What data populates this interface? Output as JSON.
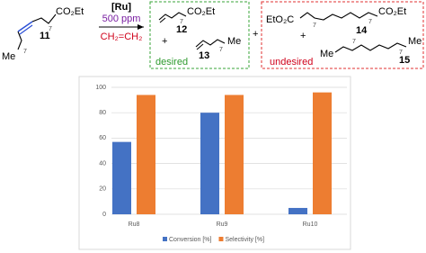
{
  "scheme": {
    "reactant": {
      "id": "11",
      "left": "Me",
      "right": "CO₂Et",
      "n": "7"
    },
    "conditions": {
      "catalyst": "[Ru]",
      "loading": "500 ppm",
      "reagent": "CH₂=CH₂"
    },
    "plus": "+",
    "desired": {
      "label": "desired",
      "products": [
        {
          "id": "12",
          "group": "CO₂Et",
          "n": "7"
        },
        {
          "id": "13",
          "group": "Me",
          "n": "7"
        }
      ]
    },
    "undesired": {
      "label": "undesired",
      "products": [
        {
          "id": "14",
          "left": "EtO₂C",
          "right": "CO₂Et",
          "n": "7"
        },
        {
          "id": "15",
          "left": "Me",
          "right": "Me",
          "n": "7"
        }
      ]
    }
  },
  "chart_data": {
    "type": "bar",
    "categories": [
      "Ru8",
      "Ru9",
      "Ru10"
    ],
    "series": [
      {
        "name": "Conversion [%]",
        "color": "#4472c4",
        "values": [
          57,
          80,
          5
        ]
      },
      {
        "name": "Selectivity [%]",
        "color": "#ed7d31",
        "values": [
          94,
          94,
          96
        ]
      }
    ],
    "ylim": [
      0,
      100
    ],
    "yticks": [
      0,
      20,
      40,
      60,
      80,
      100
    ],
    "grid": true
  }
}
